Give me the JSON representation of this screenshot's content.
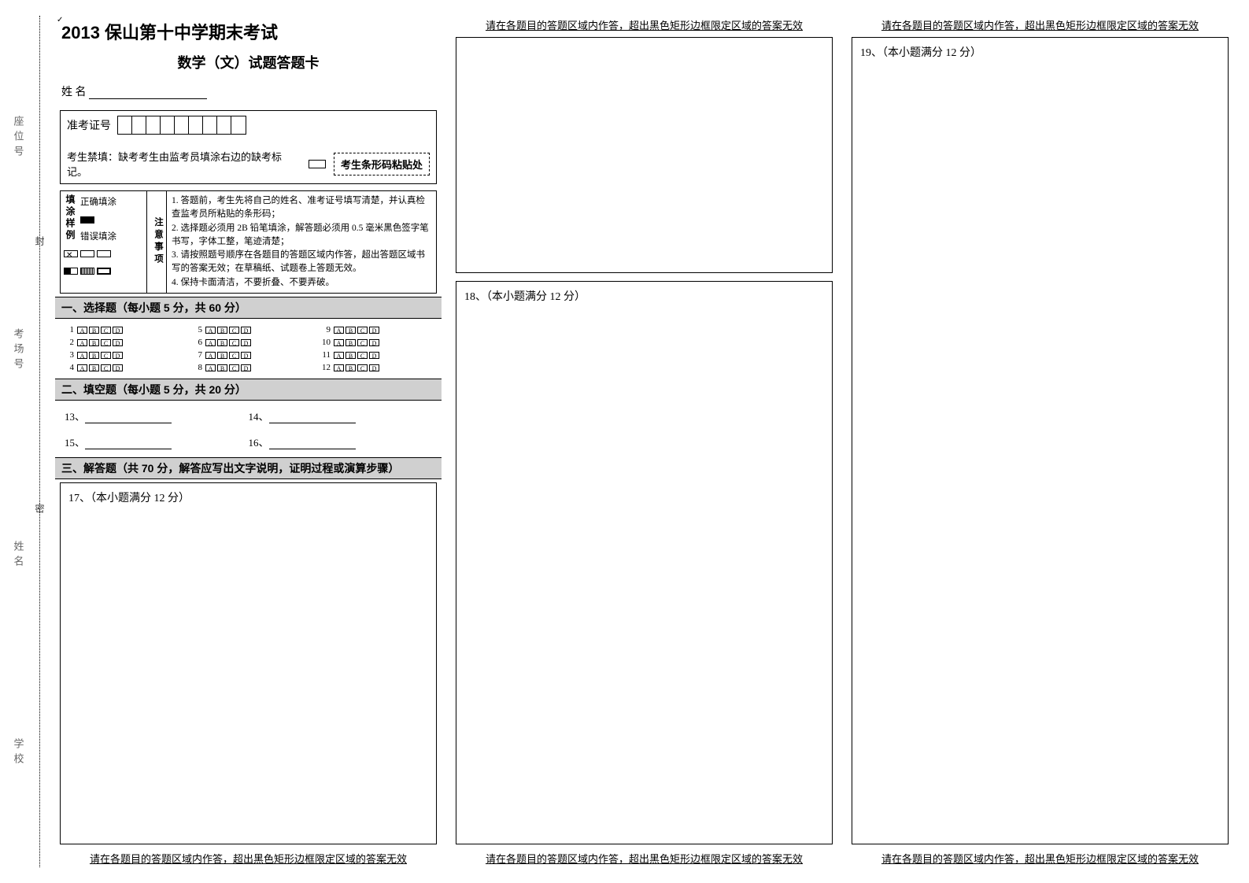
{
  "side": {
    "seat": "座位号",
    "room": "考场号",
    "name": "姓名",
    "school": "学校"
  },
  "dotted_marks": {
    "top": "封",
    "bottom": "密"
  },
  "title": "2013 保山第十中学期末考试",
  "subtitle": "数学（文）试题答题卡",
  "name_row": {
    "label": "姓    名"
  },
  "info": {
    "ticket_label": "准考证号",
    "forbid_text": "考生禁填：缺考考生由监考员填涂右边的缺考标记。",
    "barcode_label": "考生条形码粘贴处"
  },
  "instruct": {
    "left_title": "填涂样例",
    "correct_label": "正确填涂",
    "wrong_label": "错误填涂",
    "mid_title": "注意事项",
    "lines": [
      "1. 答题前，考生先将自己的姓名、准考证号填写清楚，并认真检查监考员所粘贴的条形码；",
      "2. 选择题必须用 2B 铅笔填涂，解答题必须用 0.5 毫米黑色签字笔书写，字体工整，笔迹清楚；",
      "3. 请按照题号顺序在各题目的答题区域内作答，超出答题区域书写的答案无效；在草稿纸、试题卷上答题无效。",
      "4. 保持卡面清洁，不要折叠、不要弄破。"
    ]
  },
  "sec1": {
    "head": "一、选择题（每小题 5 分，共 60 分）",
    "options": [
      "A",
      "B",
      "C",
      "D"
    ],
    "count": 12
  },
  "sec2": {
    "head": "二、填空题（每小题 5 分，共 20 分）",
    "items": [
      "13、",
      "14、",
      "15、",
      "16、"
    ]
  },
  "sec3": {
    "head": "三、解答题（共 70 分，解答应写出文字说明，证明过程或演算步骤）",
    "q17": "17、（本小题满分 12 分）",
    "q18": "18、（本小题满分 12 分）",
    "q19": "19、（本小题满分 12 分）"
  },
  "frame": {
    "top_note": "请在各题目的答题区域内作答，超出黑色矩形边框限定区域的答案无效",
    "bottom_note": "请在各题目的答题区域内作答，超出黑色矩形边框限定区域的答案无效"
  },
  "colors": {
    "section_bg": "#d0d0d0",
    "text": "#000000",
    "bg": "#ffffff"
  }
}
